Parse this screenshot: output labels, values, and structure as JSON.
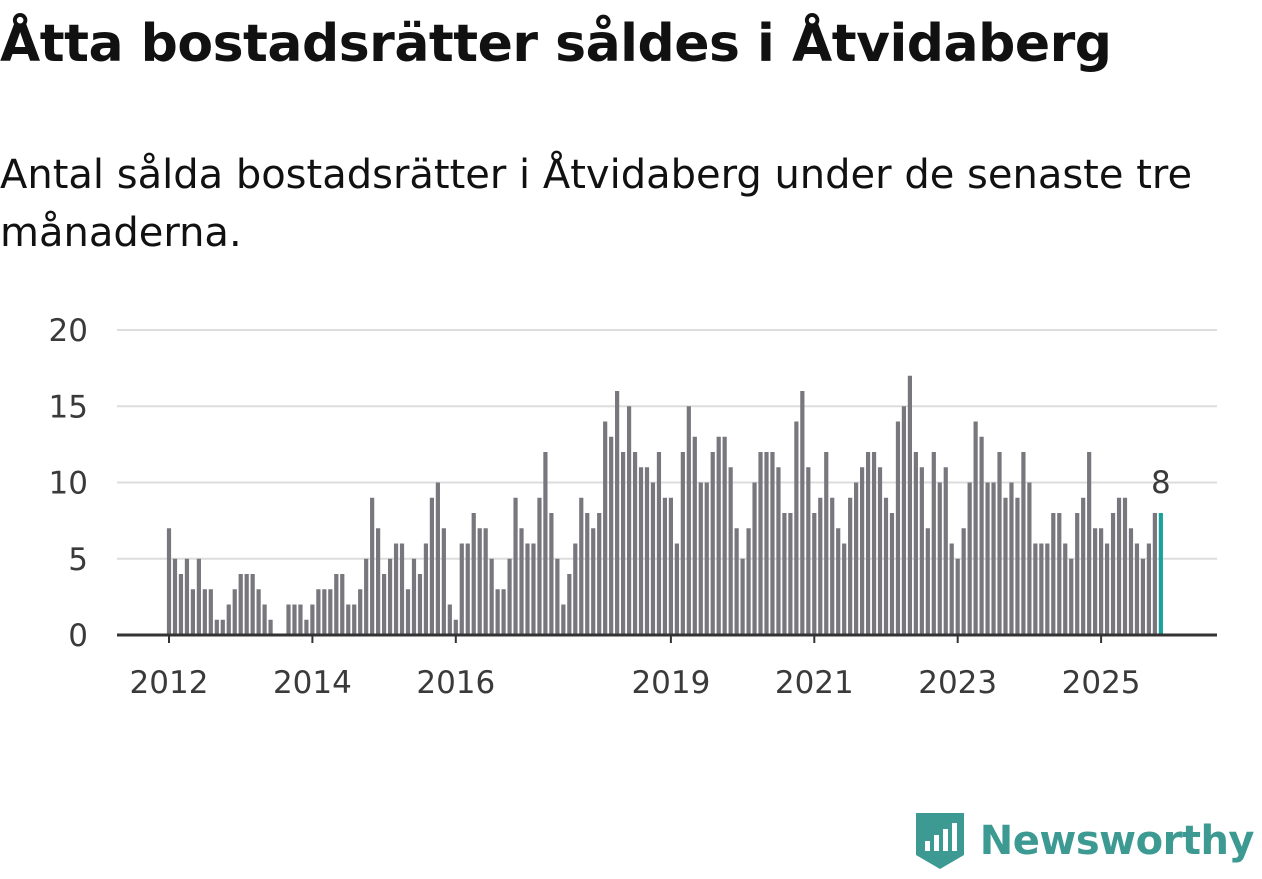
{
  "title": "Åtta bostadsrätter såldes i Åtvidaberg",
  "subtitle": "Antal sålda bostadsrätter i Åtvidaberg under de senaste tre månaderna.",
  "brand": {
    "name": "Newsworthy",
    "color": "#3d9a93",
    "icon": "newsworthy-logo-icon"
  },
  "colors": {
    "bar": "#78777d",
    "highlight": "#1aa19b",
    "grid": "#dddddd",
    "axis": "#333333"
  },
  "chart_data": {
    "type": "bar",
    "title": "Åtta bostadsrätter såldes i Åtvidaberg",
    "xlabel": "",
    "ylabel": "",
    "ylim": [
      0,
      20
    ],
    "yticks": [
      0,
      5,
      10,
      15,
      20
    ],
    "grid": true,
    "start": "2012-01",
    "frequency": "monthly",
    "xticks": [
      {
        "label": "2012",
        "index": 0
      },
      {
        "label": "2014",
        "index": 24
      },
      {
        "label": "2016",
        "index": 48
      },
      {
        "label": "2019",
        "index": 84
      },
      {
        "label": "2021",
        "index": 108
      },
      {
        "label": "2023",
        "index": 132
      },
      {
        "label": "2025",
        "index": 156
      }
    ],
    "values": [
      7,
      5,
      4,
      5,
      3,
      5,
      3,
      3,
      1,
      1,
      2,
      3,
      4,
      4,
      4,
      3,
      2,
      1,
      0,
      0,
      2,
      2,
      2,
      1,
      2,
      3,
      3,
      3,
      4,
      4,
      2,
      2,
      3,
      5,
      9,
      7,
      4,
      5,
      6,
      6,
      3,
      5,
      4,
      6,
      9,
      10,
      7,
      2,
      1,
      6,
      6,
      8,
      7,
      7,
      5,
      3,
      3,
      5,
      9,
      7,
      6,
      6,
      9,
      12,
      8,
      5,
      2,
      4,
      6,
      9,
      8,
      7,
      8,
      14,
      13,
      16,
      12,
      15,
      12,
      11,
      11,
      10,
      12,
      9,
      9,
      6,
      12,
      15,
      13,
      10,
      10,
      12,
      13,
      13,
      11,
      7,
      5,
      7,
      10,
      12,
      12,
      12,
      11,
      8,
      8,
      14,
      16,
      11,
      8,
      9,
      12,
      9,
      7,
      6,
      9,
      10,
      11,
      12,
      12,
      11,
      9,
      8,
      14,
      15,
      17,
      12,
      11,
      7,
      12,
      10,
      11,
      6,
      5,
      7,
      10,
      14,
      13,
      10,
      10,
      12,
      9,
      10,
      9,
      12,
      10,
      6,
      6,
      6,
      8,
      8,
      6,
      5,
      8,
      9,
      12,
      7,
      7,
      6,
      8,
      9,
      9,
      7,
      6,
      5,
      6,
      8,
      8
    ],
    "highlight_index": 166,
    "highlight_label": "8"
  }
}
